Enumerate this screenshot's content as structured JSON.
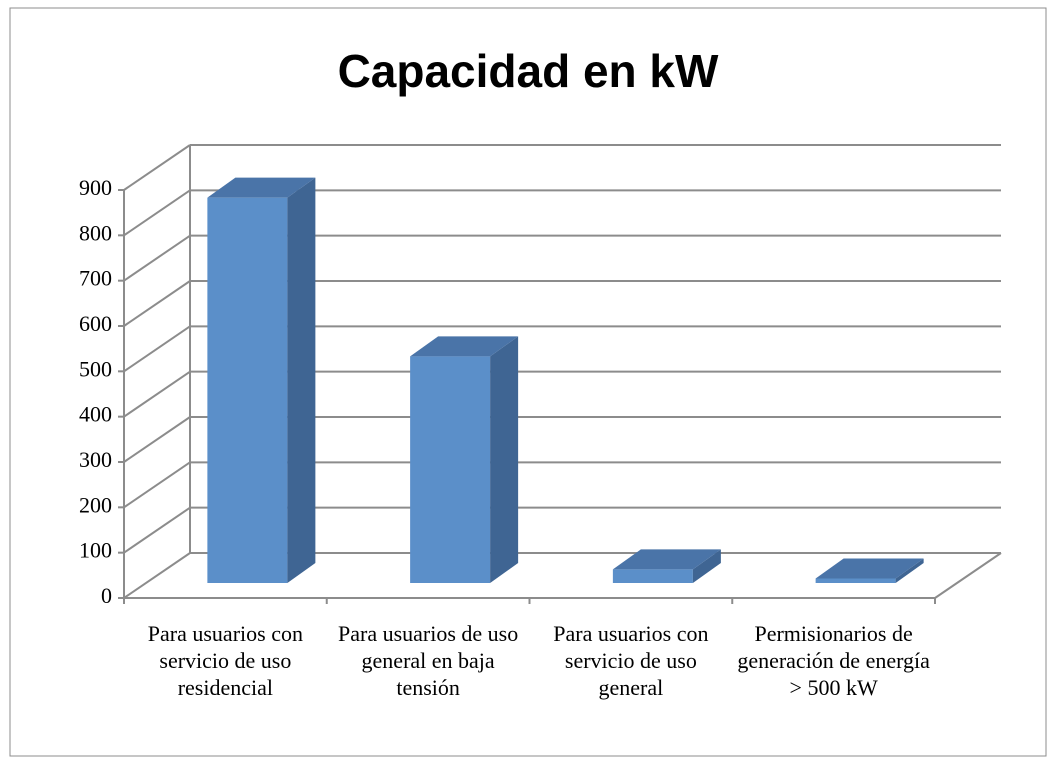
{
  "chart_data": {
    "type": "bar3d",
    "title": "Capacidad en kW",
    "categories": [
      "Para usuarios con servicio de uso residencial",
      "Para usuarios de uso general en baja tensión",
      "Para usuarios con servicio de uso general",
      "Permisionarios de generación de energía > 500 kW"
    ],
    "values": [
      850,
      500,
      30,
      10
    ],
    "color": "#5b8fc9",
    "ylim": [
      0,
      900
    ],
    "yticks": [
      0,
      100,
      200,
      300,
      400,
      500,
      600,
      700,
      800,
      900
    ],
    "grid": true
  }
}
